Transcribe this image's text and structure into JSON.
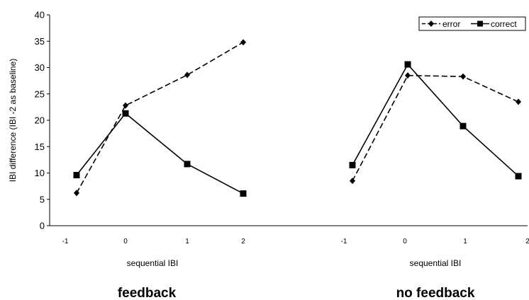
{
  "chart_data": {
    "type": "line",
    "ylabel": "IBI difference (IBI -2 as baseline)",
    "ylim": [
      0,
      40
    ],
    "yticks": [
      "0",
      "5",
      "10",
      "15",
      "20",
      "25",
      "30",
      "35",
      "40"
    ],
    "grid": false,
    "legend": {
      "placement": "top-right",
      "entries": [
        {
          "name": "error",
          "style": "dashed",
          "marker": "diamond"
        },
        {
          "name": "correct",
          "style": "solid",
          "marker": "square"
        }
      ]
    },
    "panels": [
      {
        "title": "feedback",
        "xlabel": "sequential IBI",
        "xticks": [
          "-1",
          "0",
          "1",
          "2"
        ],
        "x": [
          -1,
          0,
          1,
          2
        ],
        "series": [
          {
            "name": "error",
            "values": [
              6.2,
              22.8,
              28.6,
              34.8
            ]
          },
          {
            "name": "correct",
            "values": [
              9.6,
              21.3,
              11.7,
              6.1
            ]
          }
        ]
      },
      {
        "title": "no feedback",
        "xlabel": "sequential IBI",
        "xticks": [
          "-1",
          "0",
          "1",
          "2"
        ],
        "x": [
          -1,
          0,
          1,
          2
        ],
        "series": [
          {
            "name": "error",
            "values": [
              8.5,
              28.5,
              28.3,
              23.5
            ]
          },
          {
            "name": "correct",
            "values": [
              11.5,
              30.6,
              18.9,
              9.4
            ]
          }
        ]
      }
    ]
  }
}
